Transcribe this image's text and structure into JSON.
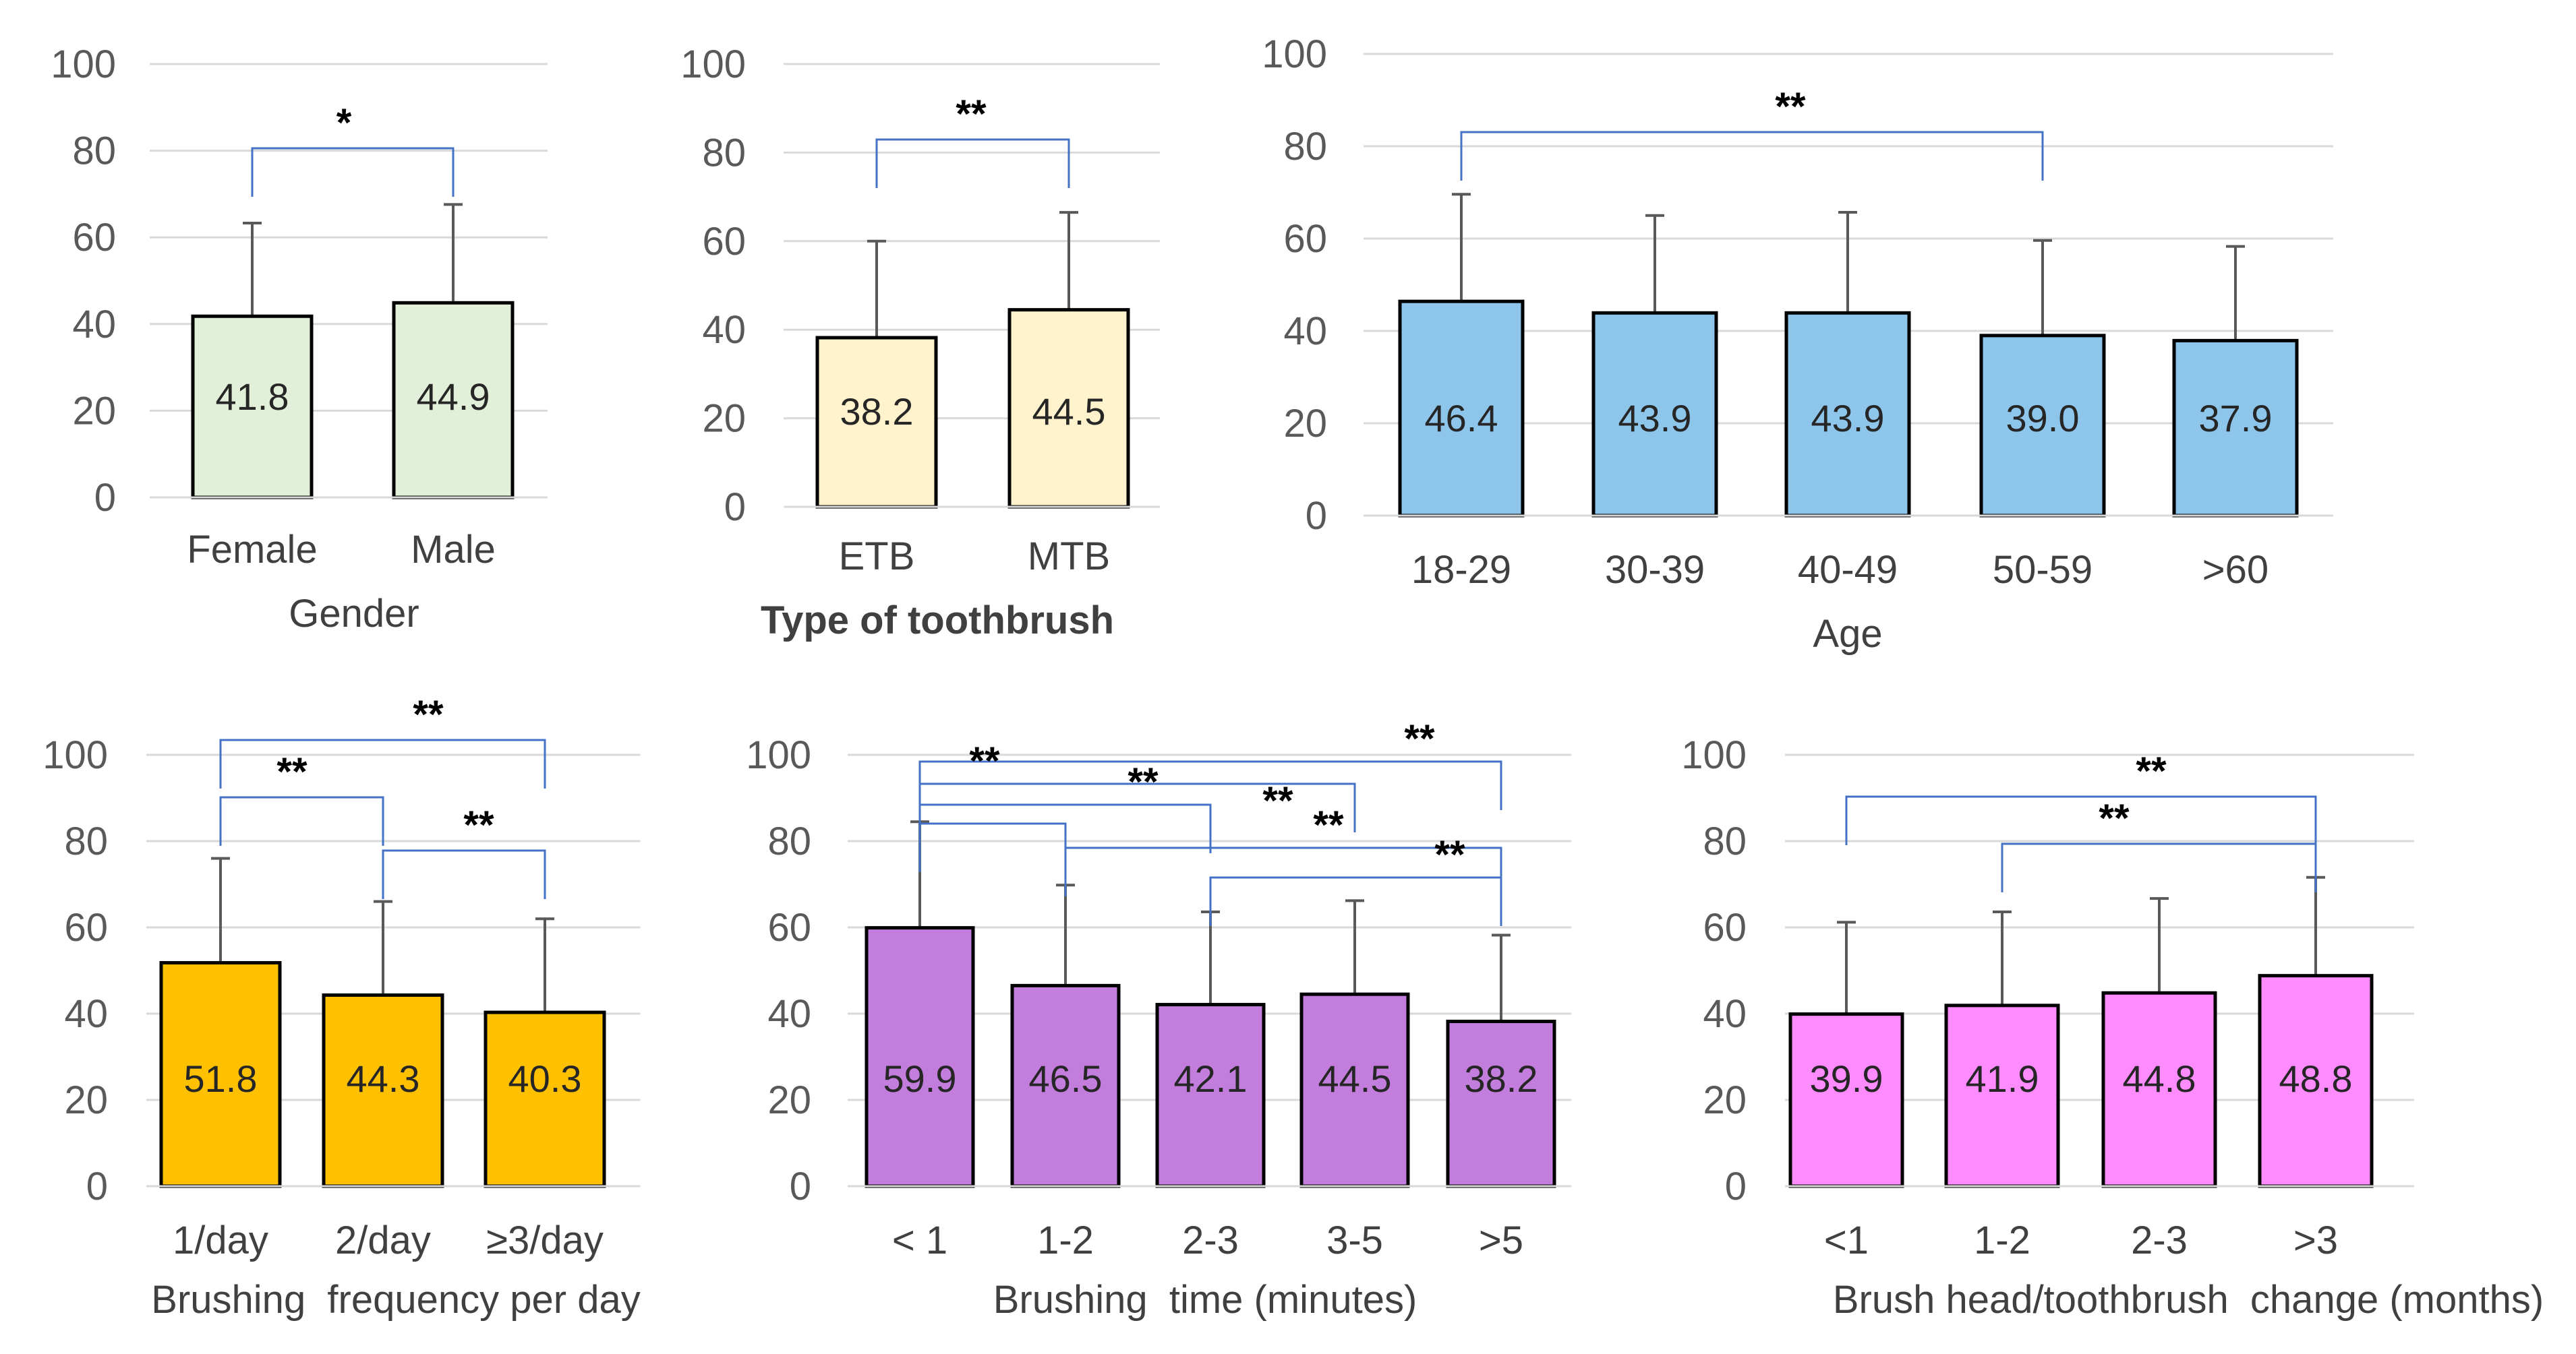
{
  "chart_data": [
    {
      "type": "bar",
      "name": "gender",
      "categories": [
        "Female",
        "Male"
      ],
      "values": [
        41.8,
        44.9
      ],
      "error_plus": [
        21.5,
        22.7
      ],
      "xlabel": "Gender",
      "ylim": [
        0,
        100
      ],
      "yticks": [
        "0",
        "20",
        "40",
        "60",
        "80",
        "100"
      ],
      "bar_color": "#e2f0d9",
      "brackets": [
        {
          "from": "Female",
          "to": "Male",
          "label": "*"
        }
      ]
    },
    {
      "type": "bar",
      "name": "toothbrush",
      "categories": [
        "ETB",
        "MTB"
      ],
      "values": [
        38.2,
        44.5
      ],
      "error_plus": [
        21.8,
        22.0
      ],
      "xlabel": "Type of toothbrush",
      "ylim": [
        0,
        100
      ],
      "yticks": [
        "0",
        "20",
        "40",
        "60",
        "80",
        "100"
      ],
      "bar_color": "#fff2cc",
      "brackets": [
        {
          "from": "ETB",
          "to": "MTB",
          "label": "**"
        }
      ]
    },
    {
      "type": "bar",
      "name": "age",
      "categories": [
        "18-29",
        "30-39",
        "40-49",
        "50-59",
        ">60"
      ],
      "values": [
        46.4,
        43.9,
        43.9,
        39.0,
        37.9
      ],
      "error_plus": [
        23.2,
        21.1,
        21.8,
        20.6,
        20.4
      ],
      "xlabel": "Age",
      "ylim": [
        0,
        100
      ],
      "yticks": [
        "0",
        "20",
        "40",
        "60",
        "80",
        "100"
      ],
      "bar_color": "#8ec5ea",
      "brackets": [
        {
          "from": "18-29",
          "to": "50-59",
          "label": "**"
        }
      ]
    },
    {
      "type": "bar",
      "name": "frequency",
      "categories": [
        "1/day",
        "2/day",
        "≥3/day"
      ],
      "values": [
        51.8,
        44.3,
        40.3
      ],
      "error_plus": [
        24.2,
        21.7,
        21.7
      ],
      "xlabel": "Brushing  frequency per day",
      "ylim": [
        0,
        100
      ],
      "yticks": [
        "0",
        "20",
        "40",
        "60",
        "80",
        "100"
      ],
      "bar_color": "#ffc000",
      "brackets": [
        {
          "from": "1/day",
          "to": "≥3/day",
          "label": "**"
        },
        {
          "from": "1/day",
          "to": "2/day",
          "label": "**"
        },
        {
          "from": "2/day",
          "to": "≥3/day",
          "label": "**"
        }
      ]
    },
    {
      "type": "bar",
      "name": "time",
      "categories": [
        "< 1",
        "1-2",
        "2-3",
        "3-5",
        ">5"
      ],
      "values": [
        59.9,
        46.5,
        42.1,
        44.5,
        38.2
      ],
      "error_plus": [
        24.6,
        23.3,
        21.5,
        21.7,
        20.0
      ],
      "xlabel": "Brushing  time (minutes)",
      "ylim": [
        0,
        100
      ],
      "yticks": [
        "0",
        "20",
        "40",
        "60",
        "80",
        "100"
      ],
      "bar_color": "#c27ddd",
      "brackets": [
        {
          "from": "< 1",
          "to": ">5",
          "label": "**"
        },
        {
          "from": "< 1",
          "to": "3-5",
          "label": "**"
        },
        {
          "from": "< 1",
          "to": "2-3",
          "label": "**"
        },
        {
          "from": "< 1",
          "to": "1-2",
          "label": "**"
        },
        {
          "from": "1-2",
          "to": ">5",
          "label": "**"
        },
        {
          "from": "2-3",
          "to": ">5",
          "label": "**"
        }
      ]
    },
    {
      "type": "bar",
      "name": "change",
      "categories": [
        "<1",
        "1-2",
        "2-3",
        ">3"
      ],
      "values": [
        39.9,
        41.9,
        44.8,
        48.8
      ],
      "error_plus": [
        21.3,
        21.7,
        21.9,
        22.8
      ],
      "xlabel": "Brush head/toothbrush  change (months)",
      "ylim": [
        0,
        100
      ],
      "yticks": [
        "0",
        "20",
        "40",
        "60",
        "80",
        "100"
      ],
      "bar_color": "#ff8cff",
      "brackets": [
        {
          "from": "<1",
          "to": ">3",
          "label": "**"
        },
        {
          "from": "1-2",
          "to": ">3",
          "label": "**"
        }
      ]
    }
  ]
}
